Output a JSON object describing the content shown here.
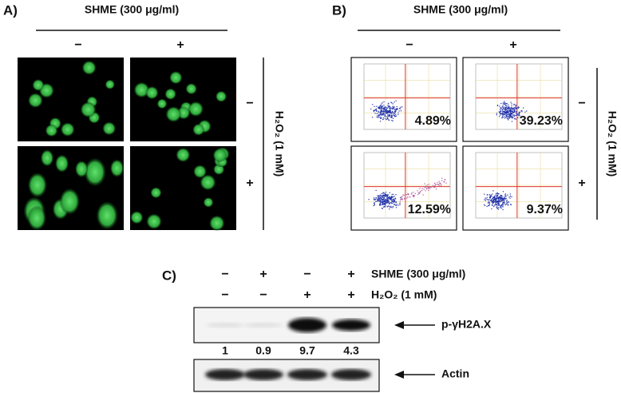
{
  "panel_a": {
    "label": "A)",
    "treatment": "SHME (300 μg/ml)",
    "columns": [
      "−",
      "+"
    ],
    "rows_label": "H₂O₂ (1 mM)",
    "rows": [
      "−",
      "+"
    ]
  },
  "panel_b": {
    "label": "B)",
    "treatment": "SHME (300 μg/ml)",
    "columns": [
      "−",
      "+"
    ],
    "rows_label": "H₂O₂ (1 mM)",
    "rows": [
      "−",
      "+"
    ],
    "percentages": [
      [
        "4.89%",
        "39.23%"
      ],
      [
        "12.59%",
        "9.37%"
      ]
    ]
  },
  "panel_c": {
    "label": "C)",
    "shme_label": "SHME (300 μg/ml)",
    "shme": [
      "−",
      "+",
      "−",
      "+"
    ],
    "h2o2_label": "H₂O₂ (1 mM)",
    "h2o2": [
      "−",
      "−",
      "+",
      "+"
    ],
    "target": "p-γH2A.X",
    "quantities": [
      "1",
      "0.9",
      "9.7",
      "4.3"
    ],
    "control": "Actin"
  }
}
